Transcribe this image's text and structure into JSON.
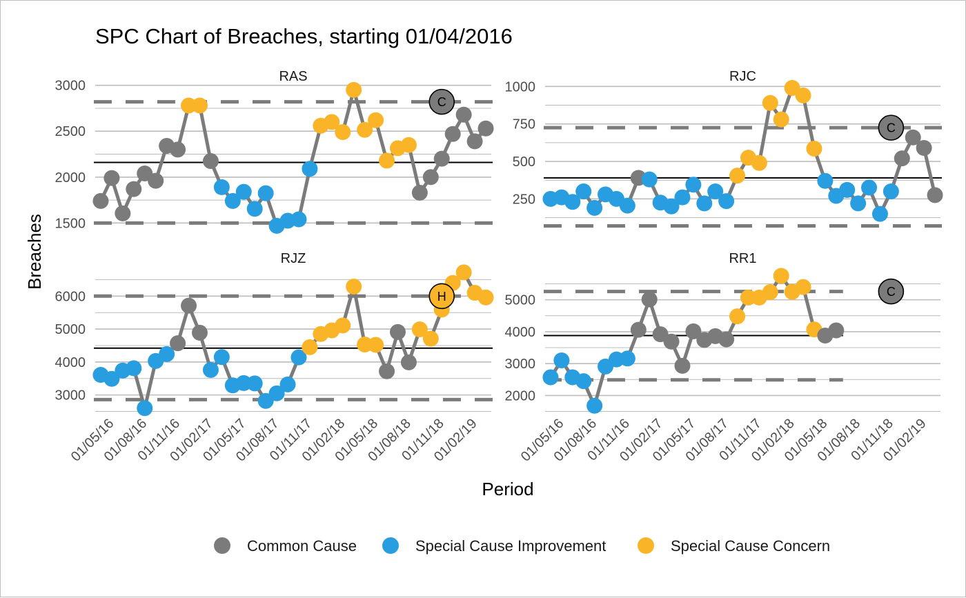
{
  "chart_data": {
    "type": "line",
    "title": "SPC Chart of Breaches, starting 01/04/2016",
    "xlabel": "Period",
    "ylabel": "Breaches",
    "x_ticks": [
      "01/05/16",
      "01/08/16",
      "01/11/16",
      "01/02/17",
      "01/05/17",
      "01/08/17",
      "01/11/17",
      "01/02/18",
      "01/05/18",
      "01/08/18",
      "01/11/18",
      "01/02/19"
    ],
    "x_tick_month_index": [
      1,
      4,
      7,
      10,
      13,
      16,
      19,
      22,
      25,
      28,
      31,
      34
    ],
    "x_range_month_index": [
      -0.5,
      35.5
    ],
    "legend": {
      "placement": "bottom",
      "entries": [
        {
          "key": "C",
          "label": "Common Cause",
          "color": "#7b7b7b"
        },
        {
          "key": "I",
          "label": "Special Cause Improvement",
          "color": "#289de0"
        },
        {
          "key": "W",
          "label": "Special Cause Concern",
          "color": "#fab428"
        }
      ]
    },
    "styles": {
      "line_color": "#7b7b7b",
      "mean_color": "#000000",
      "limit_color": "#7b7b7b",
      "grid_color": "#bcbcbc"
    },
    "panels": [
      {
        "name": "RAS",
        "ylim": [
          1420,
          3020
        ],
        "yticks": [
          "1500",
          "2000",
          "2500",
          "3000"
        ],
        "ytick_values": [
          1500,
          2000,
          2500,
          3000
        ],
        "mean": 2160,
        "ucl": 2820,
        "lcl": 1500,
        "badge": "C",
        "values": [
          1740,
          1990,
          1605,
          1870,
          2040,
          1960,
          2340,
          2300,
          2780,
          2780,
          2175,
          1890,
          1740,
          1840,
          1655,
          1825,
          1470,
          1525,
          1540,
          2090,
          2560,
          2600,
          2490,
          2950,
          2515,
          2620,
          2180,
          2315,
          2350,
          1830,
          2000,
          2200,
          2470,
          2680,
          2390,
          2530
        ],
        "status": [
          "C",
          "C",
          "C",
          "C",
          "C",
          "C",
          "C",
          "C",
          "W",
          "W",
          "C",
          "I",
          "I",
          "I",
          "I",
          "I",
          "I",
          "I",
          "I",
          "I",
          "W",
          "W",
          "W",
          "W",
          "W",
          "W",
          "W",
          "W",
          "W",
          "C",
          "C",
          "C",
          "C",
          "C",
          "C",
          "C"
        ]
      },
      {
        "name": "RJC",
        "ylim": [
          40,
          1020
        ],
        "yticks": [
          "250",
          "500",
          "750",
          "1000"
        ],
        "ytick_values": [
          250,
          500,
          750,
          1000
        ],
        "mean": 390,
        "ucl": 725,
        "lcl": 70,
        "badge": "C",
        "values": [
          250,
          260,
          230,
          300,
          190,
          280,
          250,
          205,
          390,
          380,
          225,
          200,
          260,
          345,
          220,
          300,
          235,
          405,
          525,
          490,
          890,
          780,
          990,
          940,
          585,
          370,
          270,
          310,
          220,
          325,
          150,
          300,
          520,
          660,
          590,
          275
        ],
        "status": [
          "I",
          "I",
          "I",
          "I",
          "I",
          "I",
          "I",
          "I",
          "C",
          "I",
          "I",
          "I",
          "I",
          "I",
          "I",
          "I",
          "I",
          "W",
          "W",
          "W",
          "W",
          "W",
          "W",
          "W",
          "W",
          "I",
          "I",
          "I",
          "I",
          "I",
          "I",
          "I",
          "C",
          "C",
          "C",
          "C"
        ]
      },
      {
        "name": "RJZ",
        "ylim": [
          2490,
          6760
        ],
        "yticks": [
          "3000",
          "4000",
          "5000",
          "6000"
        ],
        "ytick_values": [
          3000,
          4000,
          5000,
          6000
        ],
        "mean": 4420,
        "ucl": 6000,
        "lcl": 2860,
        "badge": "H",
        "badge_status": "W",
        "values": [
          3610,
          3490,
          3740,
          3810,
          2600,
          4030,
          4240,
          4570,
          5710,
          4890,
          3760,
          4150,
          3290,
          3360,
          3350,
          2820,
          3050,
          3320,
          4140,
          4450,
          4850,
          4960,
          5110,
          6290,
          4530,
          4520,
          3720,
          4910,
          3990,
          4990,
          4710,
          5590,
          6400,
          6720,
          6100,
          5960
        ],
        "status": [
          "I",
          "I",
          "I",
          "I",
          "I",
          "I",
          "I",
          "C",
          "C",
          "C",
          "I",
          "I",
          "I",
          "I",
          "I",
          "I",
          "I",
          "I",
          "I",
          "W",
          "W",
          "W",
          "W",
          "W",
          "W",
          "W",
          "C",
          "C",
          "C",
          "W",
          "W",
          "W",
          "W",
          "W",
          "W",
          "W"
        ]
      },
      {
        "name": "RR1",
        "ylim": [
          1490,
          5900
        ],
        "yticks": [
          "2000",
          "3000",
          "4000",
          "5000"
        ],
        "ytick_values": [
          2000,
          3000,
          4000,
          5000
        ],
        "mean": 3880,
        "ucl": 5260,
        "lcl": 2490,
        "badge": "C",
        "values": [
          2570,
          3100,
          2570,
          2450,
          1680,
          2910,
          3130,
          3160,
          4060,
          5010,
          3920,
          3690,
          2930,
          4010,
          3740,
          3860,
          3760,
          4480,
          5070,
          5070,
          5240,
          5750,
          5250,
          5400,
          4070,
          3880,
          4040
        ],
        "status": [
          "I",
          "I",
          "I",
          "I",
          "I",
          "I",
          "I",
          "I",
          "C",
          "C",
          "C",
          "C",
          "C",
          "C",
          "C",
          "C",
          "C",
          "W",
          "W",
          "W",
          "W",
          "W",
          "W",
          "W",
          "W",
          "C",
          "C"
        ]
      }
    ]
  }
}
